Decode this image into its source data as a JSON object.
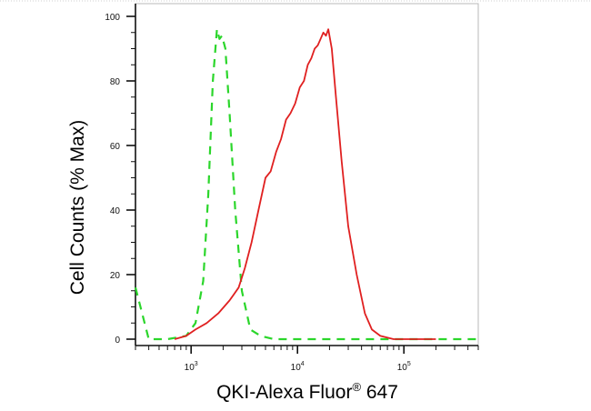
{
  "chart_data": {
    "type": "line",
    "xlabel": "QKI-Alexa Fluor",
    "xlabel_superscript": "®",
    "xlabel_suffix": " 647",
    "ylabel": "Cell Counts (% Max)",
    "x_scale": "log",
    "xlim": [
      300,
      500000
    ],
    "ylim": [
      0,
      100
    ],
    "x_ticks": [
      {
        "base": "10",
        "exp": "3",
        "value": 1000
      },
      {
        "base": "10",
        "exp": "4",
        "value": 10000
      },
      {
        "base": "10",
        "exp": "5",
        "value": 100000
      }
    ],
    "y_ticks": [
      "0",
      "20",
      "40",
      "60",
      "80",
      "100"
    ],
    "series": [
      {
        "style": "dashed",
        "color": "#2bd62b",
        "x": [
          300,
          400,
          600,
          900,
          1100,
          1300,
          1450,
          1600,
          1750,
          1850,
          1950,
          2100,
          2300,
          2600,
          3000,
          3600,
          4500,
          6000,
          10000,
          50000,
          500000
        ],
        "y": [
          16,
          0,
          0,
          1,
          5,
          18,
          45,
          80,
          96,
          93,
          94,
          90,
          70,
          40,
          15,
          3,
          1,
          0,
          0,
          0,
          0
        ]
      },
      {
        "style": "solid",
        "color": "#e02020",
        "x": [
          700,
          900,
          1100,
          1400,
          1800,
          2300,
          2800,
          3200,
          3700,
          4300,
          5000,
          5600,
          6300,
          7000,
          7800,
          8600,
          9500,
          10500,
          11500,
          12500,
          13500,
          14500,
          15500,
          16500,
          17500,
          18500,
          19500,
          21000,
          23000,
          26000,
          30000,
          36000,
          43000,
          50000,
          60000,
          80000,
          200000
        ],
        "y": [
          0,
          1,
          3,
          5,
          8,
          12,
          16,
          22,
          30,
          40,
          50,
          52,
          58,
          62,
          68,
          70,
          73,
          78,
          80,
          85,
          87,
          90,
          91,
          93,
          95,
          94,
          96,
          90,
          75,
          55,
          35,
          20,
          8,
          3,
          1,
          0,
          0
        ]
      }
    ]
  }
}
